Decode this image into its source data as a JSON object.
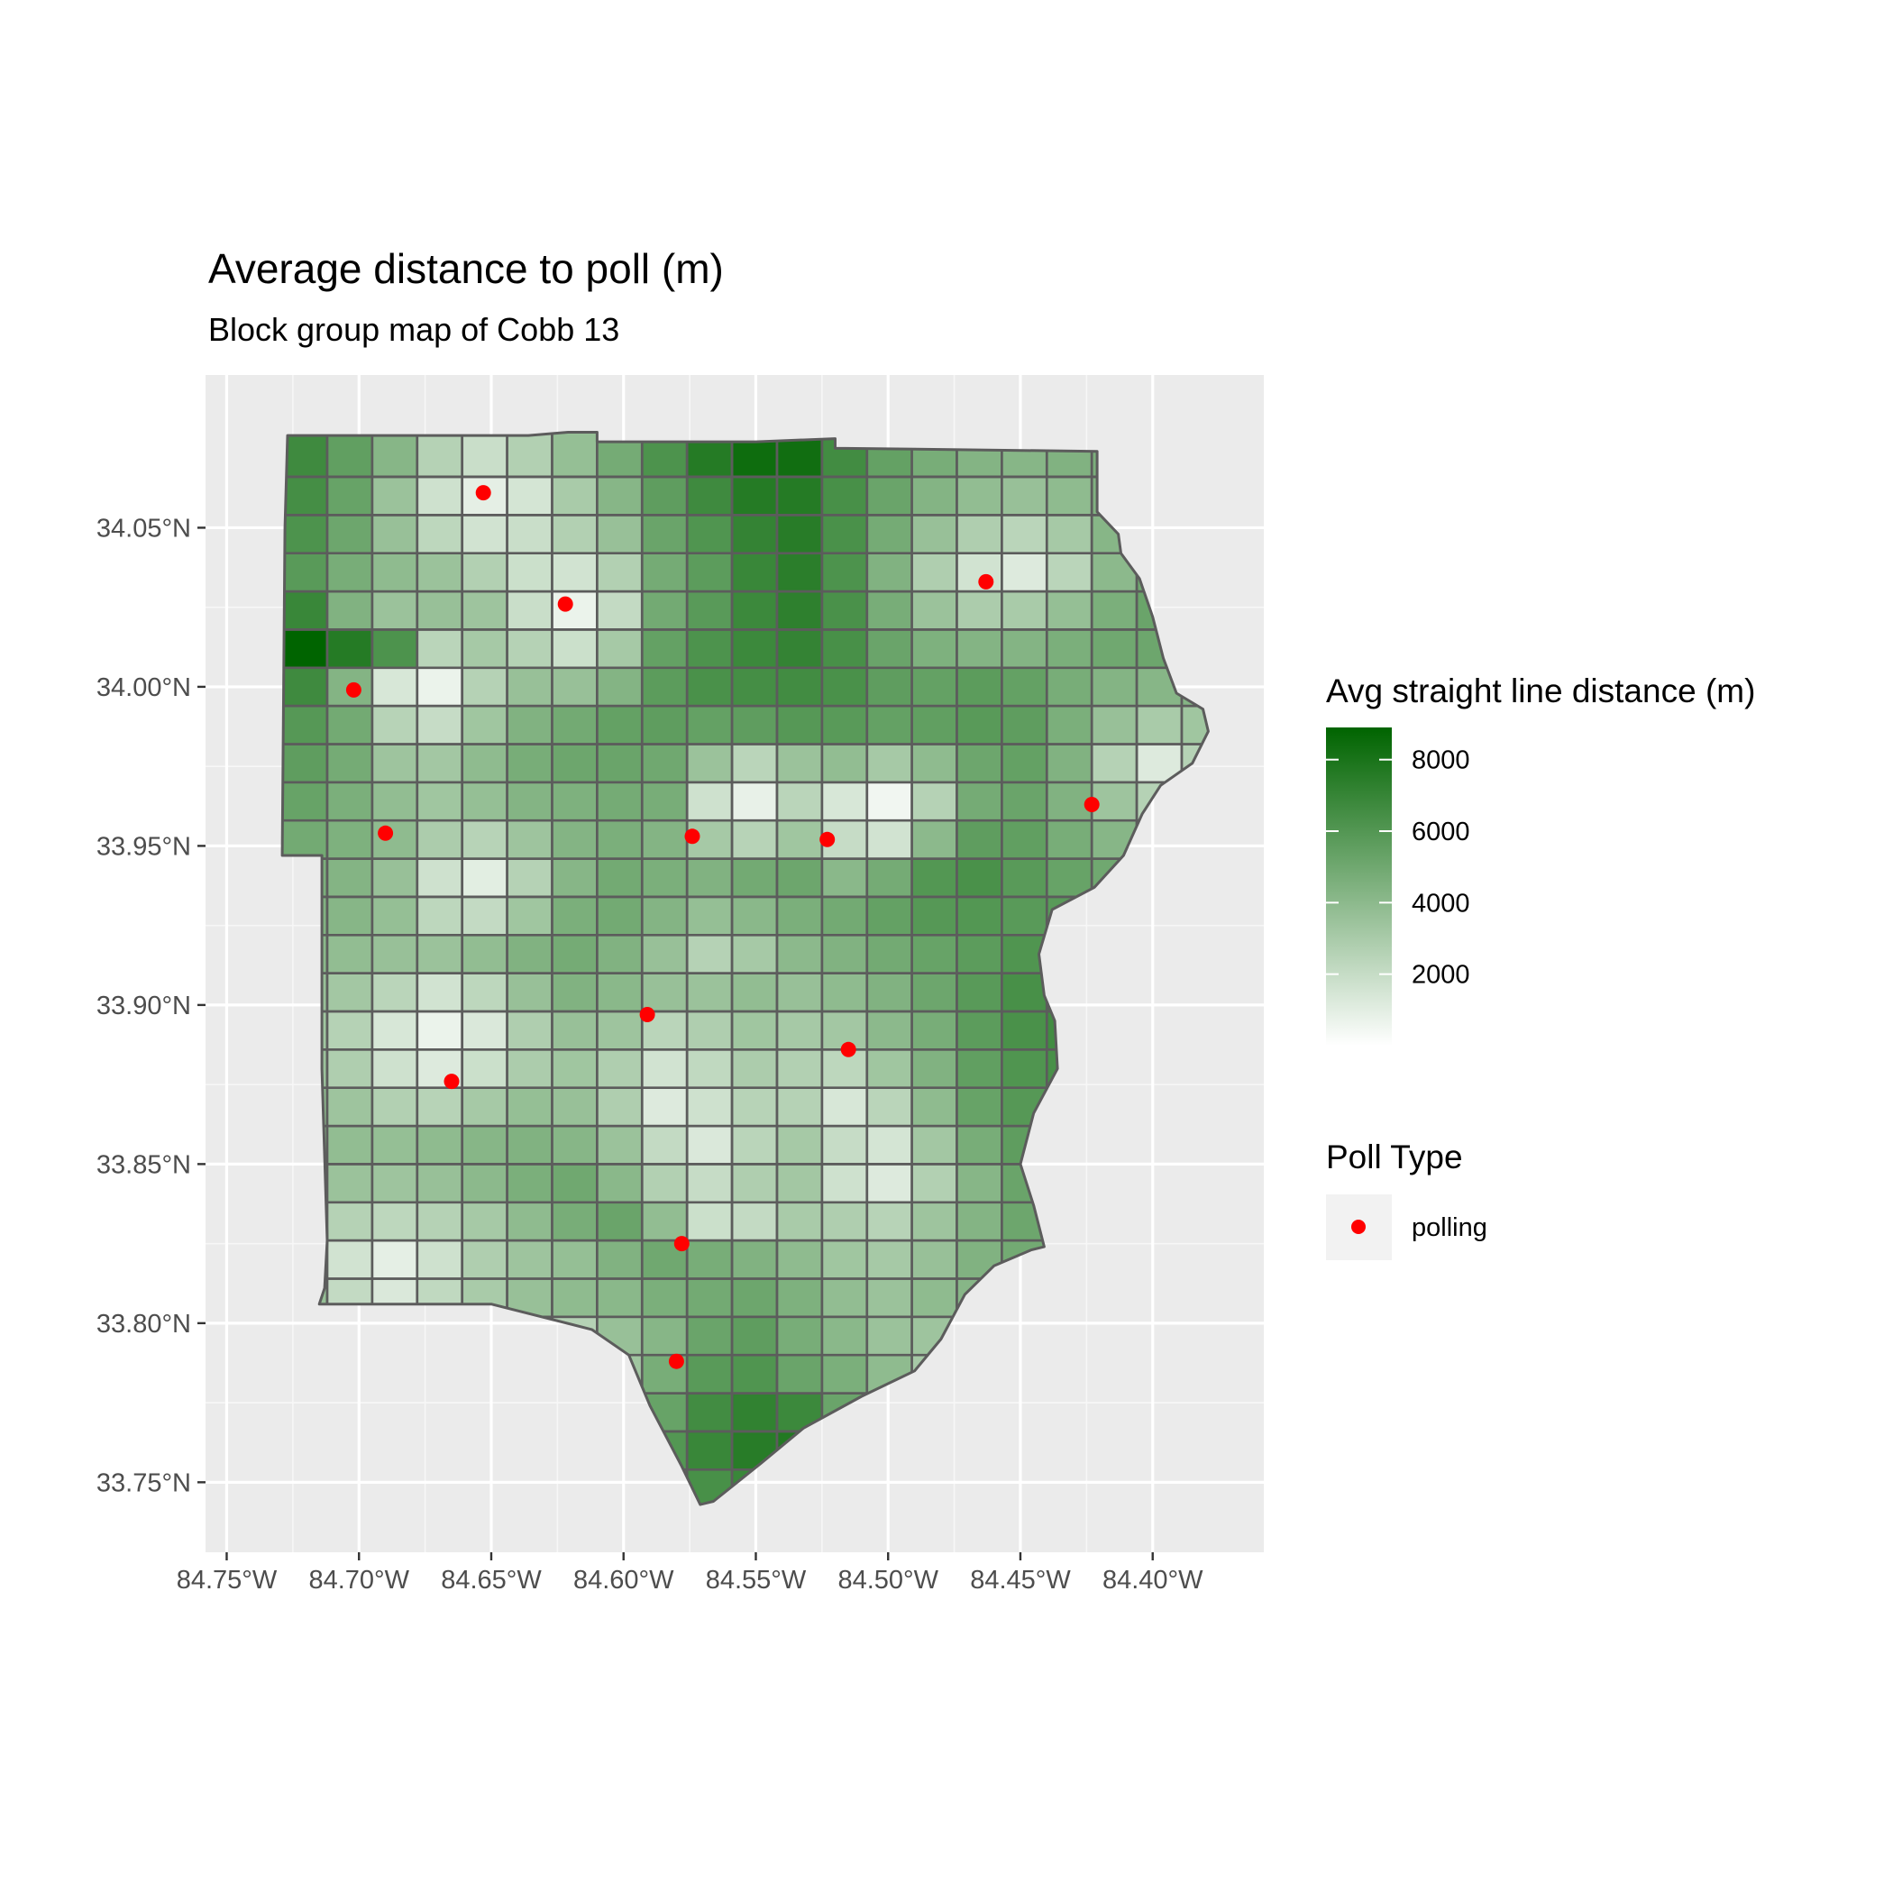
{
  "chart_data": {
    "type": "choropleth map",
    "title": "Average distance to poll (m)",
    "subtitle": "Block group map of Cobb 13",
    "x_axis": {
      "ticks": [
        -84.75,
        -84.7,
        -84.65,
        -84.6,
        -84.55,
        -84.5,
        -84.45,
        -84.4
      ],
      "tick_labels": [
        "84.75°W",
        "84.70°W",
        "84.65°W",
        "84.60°W",
        "84.55°W",
        "84.50°W",
        "84.45°W",
        "84.40°W"
      ],
      "range": [
        -84.758,
        -84.358
      ]
    },
    "y_axis": {
      "ticks": [
        33.75,
        33.8,
        33.85,
        33.9,
        33.95,
        34.0,
        34.05
      ],
      "tick_labels": [
        "33.75°N",
        "33.80°N",
        "33.85°N",
        "33.90°N",
        "33.95°N",
        "34.00°N",
        "34.05°N"
      ],
      "range": [
        33.728,
        34.098
      ]
    },
    "fill_legend": {
      "title": "Avg straight line distance (m)",
      "breaks": [
        2000,
        4000,
        6000,
        8000
      ],
      "labels": [
        "2000",
        "4000",
        "6000",
        "8000"
      ],
      "range": [
        0,
        8900
      ],
      "low_color": "#ffffff",
      "high_color": "#006400"
    },
    "point_legend": {
      "title": "Poll Type",
      "entries": [
        {
          "label": "polling",
          "color": "#ff0000"
        }
      ]
    },
    "polling_places": [
      {
        "lon": -84.653,
        "lat": 34.061
      },
      {
        "lon": -84.622,
        "lat": 34.026
      },
      {
        "lon": -84.702,
        "lat": 33.999
      },
      {
        "lon": -84.69,
        "lat": 33.954
      },
      {
        "lon": -84.574,
        "lat": 33.953
      },
      {
        "lon": -84.523,
        "lat": 33.952
      },
      {
        "lon": -84.463,
        "lat": 34.033
      },
      {
        "lon": -84.423,
        "lat": 33.963
      },
      {
        "lon": -84.591,
        "lat": 33.897
      },
      {
        "lon": -84.515,
        "lat": 33.886
      },
      {
        "lon": -84.665,
        "lat": 33.876
      },
      {
        "lon": -84.578,
        "lat": 33.825
      },
      {
        "lon": -84.58,
        "lat": 33.788
      }
    ],
    "county_outline": [
      [
        -84.727,
        34.079
      ],
      [
        -84.636,
        34.079
      ],
      [
        -84.621,
        34.08
      ],
      [
        -84.61,
        34.08
      ],
      [
        -84.61,
        34.077
      ],
      [
        -84.55,
        34.077
      ],
      [
        -84.52,
        34.078
      ],
      [
        -84.52,
        34.075
      ],
      [
        -84.421,
        34.074
      ],
      [
        -84.421,
        34.055
      ],
      [
        -84.413,
        34.048
      ],
      [
        -84.412,
        34.042
      ],
      [
        -84.405,
        34.034
      ],
      [
        -84.4,
        34.022
      ],
      [
        -84.396,
        34.009
      ],
      [
        -84.391,
        33.998
      ],
      [
        -84.381,
        33.993
      ],
      [
        -84.379,
        33.986
      ],
      [
        -84.385,
        33.976
      ],
      [
        -84.397,
        33.969
      ],
      [
        -84.404,
        33.96
      ],
      [
        -84.411,
        33.947
      ],
      [
        -84.422,
        33.937
      ],
      [
        -84.438,
        33.93
      ],
      [
        -84.443,
        33.916
      ],
      [
        -84.441,
        33.903
      ],
      [
        -84.437,
        33.895
      ],
      [
        -84.436,
        33.88
      ],
      [
        -84.445,
        33.866
      ],
      [
        -84.45,
        33.85
      ],
      [
        -84.445,
        33.837
      ],
      [
        -84.441,
        33.824
      ],
      [
        -84.446,
        33.823
      ],
      [
        -84.46,
        33.818
      ],
      [
        -84.471,
        33.809
      ],
      [
        -84.48,
        33.795
      ],
      [
        -84.49,
        33.785
      ],
      [
        -84.51,
        33.777
      ],
      [
        -84.532,
        33.767
      ],
      [
        -84.548,
        33.756
      ],
      [
        -84.566,
        33.744
      ],
      [
        -84.571,
        33.743
      ],
      [
        -84.578,
        33.755
      ],
      [
        -84.59,
        33.774
      ],
      [
        -84.598,
        33.79
      ],
      [
        -84.612,
        33.798
      ],
      [
        -84.65,
        33.806
      ],
      [
        -84.715,
        33.806
      ],
      [
        -84.713,
        33.811
      ],
      [
        -84.712,
        33.826
      ],
      [
        -84.714,
        33.88
      ],
      [
        -84.714,
        33.947
      ],
      [
        -84.729,
        33.947
      ],
      [
        -84.728,
        34.05
      ]
    ],
    "region_grid": {
      "lon_edges": [
        -84.729,
        -84.712,
        -84.695,
        -84.678,
        -84.661,
        -84.644,
        -84.627,
        -84.61,
        -84.593,
        -84.576,
        -84.559,
        -84.542,
        -84.525,
        -84.508,
        -84.491,
        -84.474,
        -84.457,
        -84.44,
        -84.423,
        -84.406,
        -84.389,
        -84.378
      ],
      "lat_edges": [
        33.742,
        33.754,
        33.766,
        33.778,
        33.79,
        33.802,
        33.814,
        33.826,
        33.838,
        33.85,
        33.862,
        33.874,
        33.886,
        33.898,
        33.91,
        33.922,
        33.934,
        33.946,
        33.958,
        33.97,
        33.982,
        33.994,
        34.006,
        34.018,
        34.03,
        34.042,
        34.054,
        34.066,
        34.081
      ],
      "avg_distance_rows": [
        [
          5200,
          4300,
          4100,
          3900,
          3800,
          4200,
          4600,
          5100,
          5700,
          6400,
          6900,
          7300,
          5600,
          4800,
          4400,
          4100,
          3900,
          4300,
          4400,
          4500,
          4600
        ],
        [
          5400,
          4100,
          3200,
          2900,
          1400,
          3200,
          3900,
          4800,
          6000,
          6900,
          7500,
          7700,
          5400,
          4600,
          4100,
          3400,
          2500,
          3400,
          3900,
          4300,
          4600
        ],
        [
          5600,
          4600,
          3600,
          2400,
          1300,
          1700,
          2800,
          3900,
          5300,
          6600,
          7200,
          6800,
          5200,
          4500,
          3600,
          2100,
          1200,
          2100,
          3600,
          4600,
          4900
        ],
        [
          5300,
          4300,
          3500,
          3100,
          2600,
          900,
          1700,
          3300,
          4700,
          5800,
          6100,
          5200,
          4600,
          3900,
          3100,
          2400,
          1800,
          2600,
          3900,
          5100,
          5400
        ],
        [
          4500,
          3400,
          2600,
          2800,
          3100,
          2900,
          2600,
          3600,
          4200,
          5200,
          5600,
          4700,
          4100,
          3500,
          3400,
          3300,
          3100,
          3600,
          4800,
          5400,
          5800
        ],
        [
          3700,
          2100,
          1300,
          2200,
          3000,
          3600,
          3900,
          4100,
          4600,
          4900,
          5100,
          4500,
          3800,
          3500,
          3900,
          4200,
          4500,
          4800,
          5300,
          5900,
          6300
        ],
        [
          3400,
          1600,
          900,
          1700,
          2800,
          3400,
          3700,
          4400,
          5000,
          4700,
          4400,
          3900,
          3300,
          3100,
          3600,
          4400,
          4900,
          5400,
          5700,
          6100,
          6400
        ],
        [
          3900,
          2600,
          2300,
          2600,
          3100,
          3900,
          4700,
          5200,
          3800,
          1800,
          2100,
          3000,
          2800,
          2500,
          3400,
          4300,
          5100,
          5700,
          6200,
          6500,
          6600
        ],
        [
          4300,
          3500,
          3400,
          3600,
          4000,
          4600,
          5000,
          4100,
          2700,
          2000,
          2800,
          3200,
          1700,
          1200,
          2700,
          4200,
          5200,
          6000,
          6600,
          6900,
          7000
        ],
        [
          4200,
          3800,
          3700,
          3900,
          4200,
          4400,
          4200,
          3500,
          2100,
          1300,
          2400,
          3100,
          2000,
          1500,
          3200,
          4700,
          5600,
          6300,
          6800,
          7000,
          7100
        ],
        [
          3900,
          3400,
          2700,
          2500,
          3100,
          3700,
          3600,
          2800,
          1200,
          1700,
          2500,
          2600,
          1400,
          2400,
          3900,
          5300,
          5900,
          6300,
          6600,
          6700,
          6800
        ],
        [
          3500,
          2800,
          1700,
          1200,
          1800,
          2900,
          3300,
          2800,
          1600,
          2200,
          2900,
          2700,
          2300,
          3300,
          4400,
          5500,
          6100,
          6400,
          6500,
          6600,
          6600
        ],
        [
          3300,
          2600,
          1400,
          700,
          1300,
          2800,
          3600,
          3400,
          2400,
          2800,
          3300,
          3100,
          3200,
          4000,
          4700,
          5700,
          6300,
          6600,
          6600,
          6500,
          6400
        ],
        [
          3600,
          3200,
          2400,
          1600,
          2300,
          3600,
          4400,
          4100,
          3600,
          3500,
          3800,
          3600,
          3900,
          4400,
          5100,
          5800,
          6400,
          6700,
          6500,
          6200,
          6100
        ],
        [
          4100,
          3800,
          3600,
          3500,
          3800,
          4400,
          4800,
          4400,
          3600,
          2600,
          3100,
          4000,
          4400,
          4900,
          5300,
          5700,
          6100,
          6500,
          6300,
          5800,
          5600
        ],
        [
          4400,
          4200,
          3700,
          2300,
          2100,
          3300,
          4600,
          4900,
          4300,
          3700,
          4100,
          4600,
          4900,
          5400,
          5900,
          6000,
          5800,
          5800,
          5600,
          5300,
          5100
        ],
        [
          4600,
          4300,
          3600,
          1700,
          1000,
          2600,
          4200,
          4900,
          4600,
          4400,
          4900,
          5100,
          4100,
          4800,
          6000,
          6300,
          5800,
          5300,
          5000,
          4900,
          4800
        ],
        [
          4900,
          4500,
          3900,
          2900,
          2500,
          3400,
          4300,
          4600,
          4300,
          3100,
          2500,
          3300,
          2000,
          1600,
          4000,
          5600,
          5500,
          4700,
          4200,
          4100,
          4000
        ],
        [
          5300,
          4600,
          3800,
          3300,
          3700,
          4300,
          4500,
          4800,
          4700,
          1700,
          800,
          2400,
          1400,
          500,
          2600,
          4800,
          5200,
          4400,
          3400,
          2600,
          2800
        ],
        [
          5600,
          4800,
          3400,
          3200,
          3900,
          4700,
          5100,
          5200,
          5000,
          3500,
          2400,
          3500,
          3800,
          3100,
          3900,
          5100,
          5400,
          4400,
          2600,
          1200,
          2600
        ],
        [
          5900,
          4900,
          2500,
          2000,
          3300,
          4400,
          4900,
          5400,
          5600,
          5400,
          5600,
          5900,
          5800,
          5400,
          5500,
          5800,
          5600,
          4600,
          3600,
          3000,
          3300
        ],
        [
          6000,
          4300,
          1400,
          700,
          2600,
          3600,
          3600,
          4300,
          5700,
          6300,
          6500,
          6600,
          6300,
          5600,
          5400,
          5700,
          5400,
          4700,
          4300,
          4200,
          4300
        ],
        [
          5800,
          4200,
          2500,
          2400,
          3100,
          2600,
          1800,
          3100,
          5400,
          6200,
          6800,
          7100,
          6400,
          5200,
          4500,
          4300,
          4300,
          4600,
          5000,
          5100,
          5000
        ],
        [
          5400,
          4400,
          3500,
          3600,
          3400,
          1900,
          700,
          2100,
          4900,
          5800,
          6800,
          7300,
          6300,
          4700,
          3500,
          2900,
          3000,
          3700,
          4600,
          5200,
          5400
        ],
        [
          5800,
          4700,
          3900,
          3500,
          2700,
          1800,
          1600,
          2700,
          4800,
          5700,
          6900,
          7400,
          6200,
          4400,
          2800,
          1600,
          1200,
          2400,
          4000,
          5000,
          5300
        ],
        [
          6200,
          5100,
          3600,
          2300,
          1600,
          1900,
          2700,
          3600,
          5200,
          6100,
          7100,
          7500,
          6300,
          4800,
          3600,
          2800,
          2400,
          3100,
          4200,
          4900,
          5200
        ],
        [
          6500,
          5300,
          3500,
          1700,
          900,
          1500,
          3000,
          4200,
          5600,
          6700,
          7600,
          7600,
          6400,
          5200,
          4300,
          3800,
          3600,
          3900,
          4400,
          4900,
          5100
        ],
        [
          6700,
          5500,
          4200,
          2600,
          1900,
          2700,
          3700,
          4800,
          6200,
          7600,
          8400,
          8300,
          6600,
          5400,
          4700,
          4300,
          4200,
          4400,
          4600,
          4900,
          5000
        ]
      ],
      "overrides": [
        {
          "row": 5,
          "col": 0,
          "value": 8900
        },
        {
          "row": 5,
          "col": 1,
          "value": 7600
        },
        {
          "row": 4,
          "col": 0,
          "value": 6900
        },
        {
          "row": 6,
          "col": 0,
          "value": 6700
        },
        {
          "row": 5,
          "col": 2,
          "value": 6200
        }
      ]
    }
  }
}
